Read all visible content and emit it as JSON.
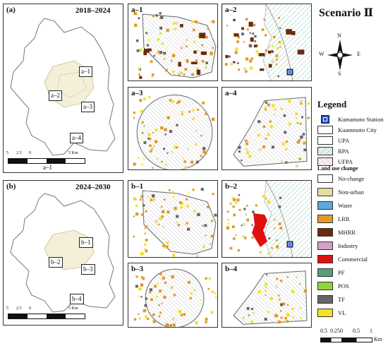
{
  "scenario_title": "Scenario Ⅱ",
  "row_a": {
    "tag": "(a)",
    "period": "2018–2024",
    "overview_boxes": [
      "a–1",
      "a–2",
      "a–3",
      "a–4"
    ],
    "scalebar_ticks": [
      "5",
      "2.5",
      "0",
      "5 Km"
    ],
    "caption": "a–1",
    "insets": [
      "a–1",
      "a–2",
      "a–3",
      "a–4"
    ]
  },
  "row_b": {
    "tag": "(b)",
    "period": "2024–2030",
    "overview_boxes": [
      "b–1",
      "b–2",
      "b–3",
      "b–4"
    ],
    "scalebar_ticks": [
      "5",
      "2.5",
      "0",
      "5 Km"
    ],
    "insets": [
      "b–1",
      "b–2",
      "b–3",
      "b–4"
    ]
  },
  "compass": {
    "n": "N",
    "s": "S",
    "e": "E",
    "w": "W"
  },
  "legend": {
    "title": "Legend",
    "items": [
      {
        "label": "Kumamoto Station",
        "kind": "station",
        "color": "#2a4fb8"
      },
      {
        "label": "Kuammoto City",
        "kind": "city",
        "color": "#ffffff"
      },
      {
        "label": "UPA",
        "kind": "plain",
        "color": "#ffffff"
      },
      {
        "label": "RPA",
        "kind": "hatch-green",
        "color": "#7fc1a9"
      },
      {
        "label": "UFPA",
        "kind": "hatch-pink",
        "color": "#e7b3c8"
      }
    ],
    "change_title": "Land use change",
    "change_items": [
      {
        "label": "No-change",
        "color": "#ffffff"
      },
      {
        "label": "Non-urban",
        "color": "#e3dda0"
      },
      {
        "label": "Water",
        "color": "#5aa9dc"
      },
      {
        "label": "LRR",
        "color": "#e19a2a"
      },
      {
        "label": "MHRR",
        "color": "#6b2a0d"
      },
      {
        "label": "Industry",
        "color": "#d3a0c8"
      },
      {
        "label": "Commercial",
        "color": "#e01010"
      },
      {
        "label": "PF",
        "color": "#55a07a"
      },
      {
        "label": "POS",
        "color": "#8ed63a"
      },
      {
        "label": "TF",
        "color": "#666666"
      },
      {
        "label": "VL",
        "color": "#f1e227"
      }
    ]
  },
  "inset_scale": {
    "ticks": [
      "0.5",
      "0.25",
      "0",
      "0.5",
      "1"
    ],
    "unit": "Km"
  }
}
